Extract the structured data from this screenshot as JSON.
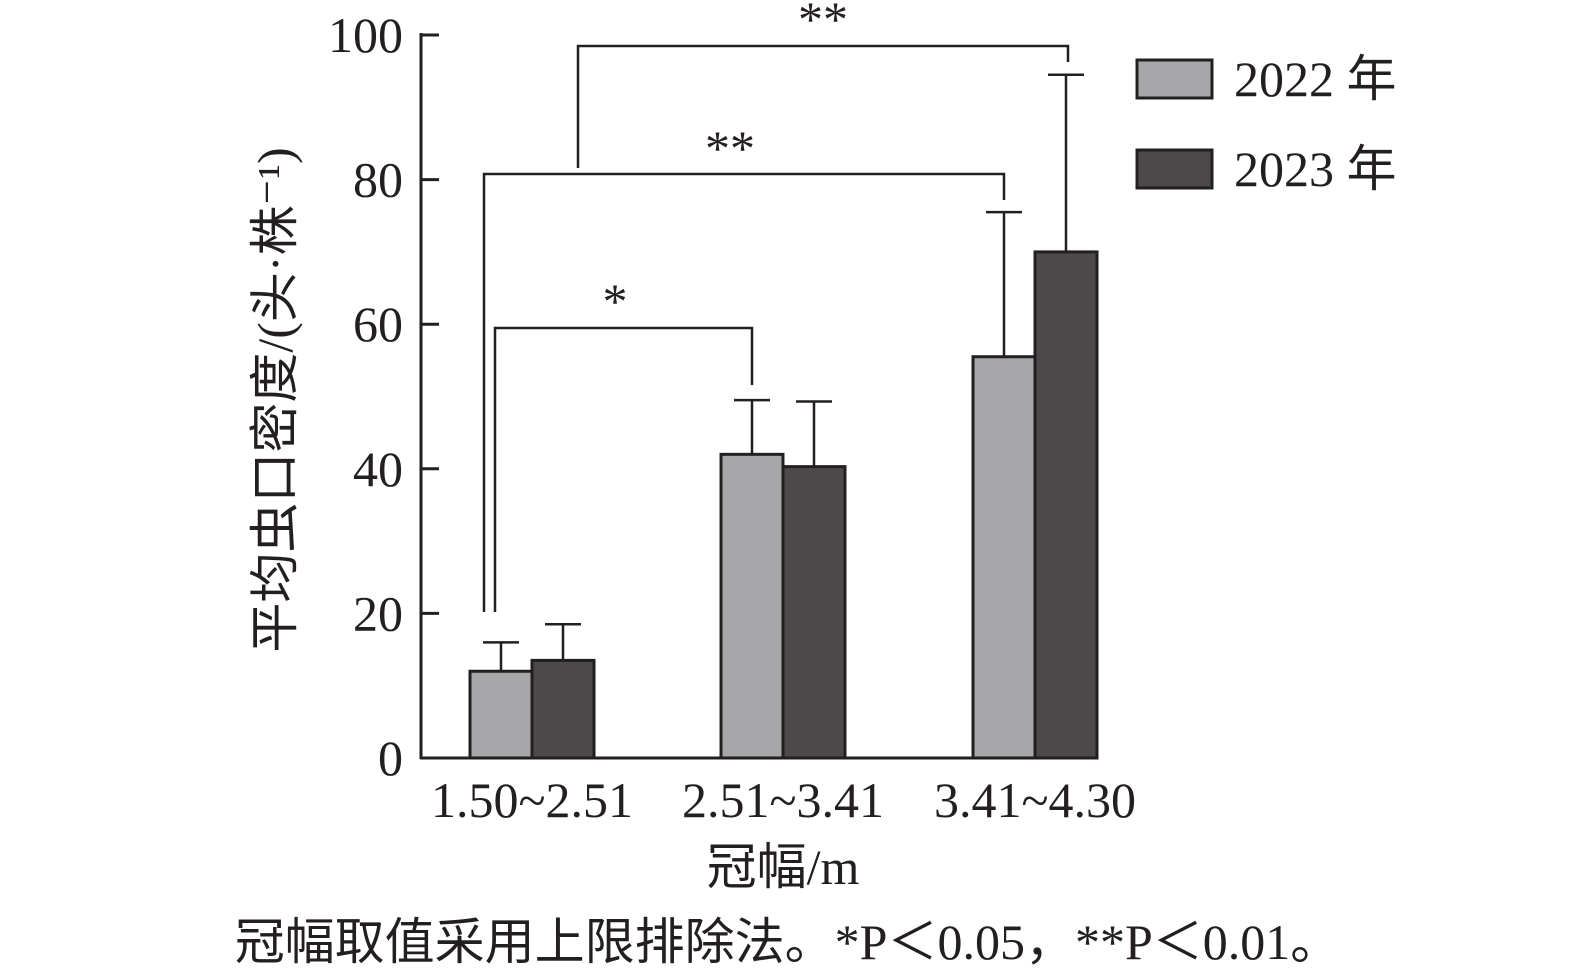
{
  "chart_data": {
    "type": "bar",
    "categories": [
      "1.50~2.51",
      "2.51~3.41",
      "3.41~4.30"
    ],
    "series": [
      {
        "name": "2022 年",
        "color": "#a7a6a8",
        "values": [
          12,
          42,
          55.5
        ],
        "errors": [
          4,
          7.5,
          20
        ]
      },
      {
        "name": "2023 年",
        "color": "#4b494a",
        "values": [
          13.5,
          40.3,
          70
        ],
        "errors": [
          5,
          9,
          24.5
        ]
      }
    ],
    "xlabel": "冠幅/m",
    "ylabel": "平均虫口密度/(头·株⁻¹)",
    "ylim": [
      0,
      100
    ],
    "yticks": [
      "0",
      "20",
      "40",
      "60",
      "80",
      "100"
    ],
    "legend_position": "top-right",
    "significance": [
      {
        "label": "*",
        "from": 0,
        "to": 1
      },
      {
        "label": "**",
        "from": 0,
        "to": 2
      },
      {
        "label": "**",
        "from": 0,
        "to": 2
      }
    ]
  },
  "footnote": "冠幅取值采用上限排除法。*P＜0.05，**P＜0.01。"
}
